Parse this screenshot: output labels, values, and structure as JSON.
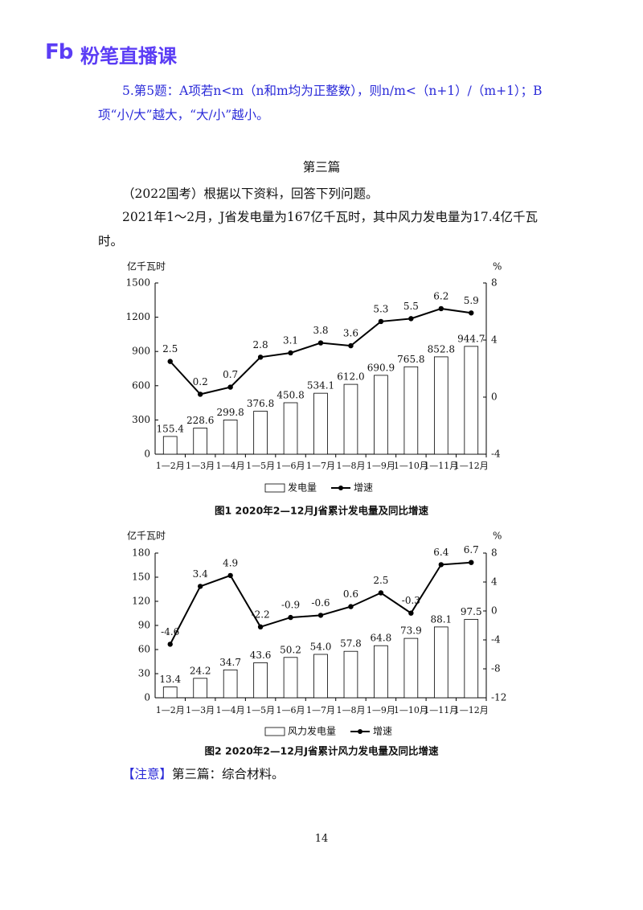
{
  "header": {
    "logo_mark": "Fb",
    "brand": "粉笔直播课"
  },
  "note": "5.第5题：A项若n<m（n和m均为正整数），则n/m<（n+1）/（m+1）；B项“小/大”越大，“大/小”越小。",
  "section_title": "第三篇",
  "intro": "（2022国考）根据以下资料，回答下列问题。",
  "material": "2021年1～2月，J省发电量为167亿千瓦时，其中风力发电量为17.4亿千瓦时。",
  "chart_data": [
    {
      "type": "combo",
      "caption": "图1  2020年2—12月J省累计发电量及同比增速",
      "y_label": "亿千瓦时",
      "y2_label": "%",
      "categories": [
        "1—2月",
        "1—3月",
        "1—4月",
        "1—5月",
        "1—6月",
        "1—7月",
        "1—8月",
        "1—9月",
        "1—10月",
        "1—11月",
        "1—12月"
      ],
      "series": [
        {
          "name": "发电量",
          "type": "bar",
          "color": "#ffffff",
          "values": [
            155.4,
            228.6,
            299.8,
            376.8,
            450.8,
            534.1,
            612.0,
            690.9,
            765.8,
            852.8,
            944.7
          ],
          "value_labels": [
            "155.4",
            "228.6",
            "299.8",
            "376.8",
            "450.8",
            "534.1",
            "612.0",
            "690.9",
            "765.8",
            "852.8",
            "944.7"
          ]
        },
        {
          "name": "增速",
          "type": "line",
          "axis": "y2",
          "color": "#000000",
          "values": [
            2.5,
            0.2,
            0.7,
            2.8,
            3.1,
            3.8,
            3.6,
            5.3,
            5.5,
            6.2,
            5.9
          ]
        }
      ],
      "ylim": [
        0,
        1500
      ],
      "yticks": [
        0,
        300,
        600,
        900,
        1200,
        1500
      ],
      "y2lim": [
        -4,
        8
      ],
      "y2ticks": [
        -4,
        0,
        4,
        8
      ]
    },
    {
      "type": "combo",
      "caption": "图2  2020年2—12月J省累计风力发电量及同比增速",
      "y_label": "亿千瓦时",
      "y2_label": "%",
      "categories": [
        "1—2月",
        "1—3月",
        "1—4月",
        "1—5月",
        "1—6月",
        "1—7月",
        "1—8月",
        "1—9月",
        "1—10月",
        "1—11月",
        "1—12月"
      ],
      "series": [
        {
          "name": "风力发电量",
          "type": "bar",
          "color": "#ffffff",
          "values": [
            13.4,
            24.2,
            34.7,
            43.6,
            50.2,
            54.0,
            57.8,
            64.8,
            73.9,
            88.1,
            97.5
          ],
          "value_labels": [
            "13.4",
            "24.2",
            "34.7",
            "43.6",
            "50.2",
            "54.0",
            "57.8",
            "64.8",
            "73.9",
            "88.1",
            "97.5"
          ]
        },
        {
          "name": "增速",
          "type": "line",
          "axis": "y2",
          "color": "#000000",
          "values": [
            -4.6,
            3.4,
            4.9,
            -2.2,
            -0.9,
            -0.6,
            0.6,
            2.5,
            -0.3,
            6.4,
            6.7
          ]
        }
      ],
      "ylim": [
        0,
        180
      ],
      "yticks": [
        0,
        30,
        60,
        90,
        120,
        150,
        180
      ],
      "y2lim": [
        -12,
        8
      ],
      "y2ticks": [
        -12,
        -8,
        -4,
        0,
        4,
        8
      ]
    }
  ],
  "attention": {
    "tag": "【注意】",
    "text": "第三篇：综合材料。"
  },
  "page_number": "14"
}
